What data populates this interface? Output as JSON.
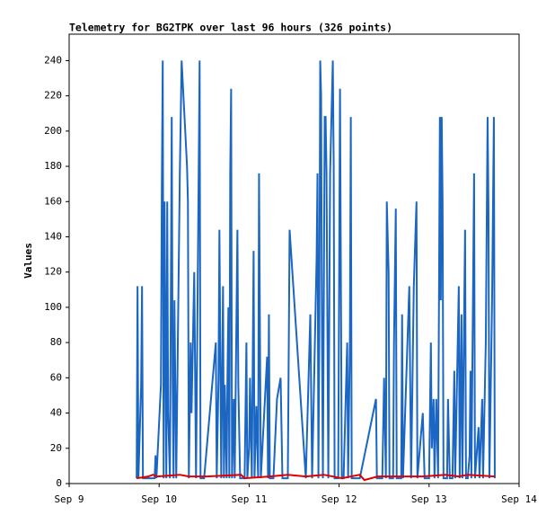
{
  "chart_data": {
    "type": "line",
    "title": "Telemetry for BG2TPK over last 96 hours (326 points)",
    "ylabel": "Values",
    "xlim": [
      9,
      14
    ],
    "xticks": [
      {
        "value": 9,
        "label": "Sep 9"
      },
      {
        "value": 10,
        "label": "Sep 10"
      },
      {
        "value": 11,
        "label": "Sep 11"
      },
      {
        "value": 12,
        "label": "Sep 12"
      },
      {
        "value": 13,
        "label": "Sep 13"
      },
      {
        "value": 14,
        "label": "Sep 14"
      }
    ],
    "ylim": [
      0,
      255
    ],
    "yticks": [
      0,
      20,
      40,
      60,
      80,
      100,
      120,
      140,
      160,
      180,
      200,
      220,
      240
    ],
    "series": [
      {
        "color": "#1a66c2",
        "x": [
          9.75,
          9.76,
          9.77,
          9.8,
          9.81,
          9.82,
          9.95,
          9.96,
          9.97,
          10.02,
          10.03,
          10.04,
          10.05,
          10.06,
          10.07,
          10.08,
          10.09,
          10.1,
          10.12,
          10.14,
          10.15,
          10.16,
          10.17,
          10.19,
          10.23,
          10.25,
          10.27,
          10.29,
          10.31,
          10.32,
          10.33,
          10.35,
          10.36,
          10.39,
          10.41,
          10.44,
          10.45,
          10.46,
          10.5,
          10.63,
          10.64,
          10.66,
          10.67,
          10.69,
          10.71,
          10.72,
          10.73,
          10.75,
          10.76,
          10.77,
          10.78,
          10.79,
          10.8,
          10.81,
          10.83,
          10.84,
          10.87,
          10.88,
          10.9,
          10.95,
          10.97,
          10.98,
          11.0,
          11.01,
          11.03,
          11.05,
          11.06,
          11.08,
          11.1,
          11.11,
          11.13,
          11.2,
          11.21,
          11.22,
          11.23,
          11.27,
          11.31,
          11.35,
          11.37,
          11.43,
          11.45,
          11.63,
          11.68,
          11.7,
          11.75,
          11.76,
          11.77,
          11.78,
          11.79,
          11.8,
          11.81,
          11.82,
          11.84,
          11.85,
          11.86,
          11.88,
          11.9,
          11.93,
          11.94,
          11.95,
          11.99,
          12.01,
          12.03,
          12.05,
          12.09,
          12.1,
          12.12,
          12.13,
          12.14,
          12.23,
          12.41,
          12.42,
          12.48,
          12.5,
          12.52,
          12.53,
          12.55,
          12.56,
          12.6,
          12.61,
          12.63,
          12.64,
          12.69,
          12.7,
          12.71,
          12.78,
          12.8,
          12.83,
          12.86,
          12.87,
          12.93,
          12.95,
          13.0,
          13.02,
          13.03,
          13.05,
          13.06,
          13.08,
          13.1,
          13.12,
          13.13,
          13.14,
          13.15,
          13.16,
          13.2,
          13.21,
          13.23,
          13.26,
          13.28,
          13.29,
          13.33,
          13.34,
          13.36,
          13.37,
          13.4,
          13.41,
          13.43,
          13.45,
          13.46,
          13.47,
          13.5,
          13.51,
          13.55,
          13.56,
          13.59,
          13.6,
          13.63,
          13.65,
          13.66,
          13.67,
          13.7,
          13.72,
          13.73
        ],
        "values": [
          3,
          112,
          3,
          56,
          112,
          3,
          3,
          16,
          3,
          56,
          168,
          240,
          3,
          160,
          80,
          3,
          160,
          40,
          3,
          208,
          60,
          3,
          104,
          3,
          176,
          240,
          220,
          200,
          180,
          160,
          3,
          80,
          40,
          120,
          3,
          180,
          240,
          3,
          3,
          80,
          3,
          60,
          144,
          3,
          112,
          3,
          56,
          3,
          64,
          100,
          3,
          176,
          224,
          3,
          48,
          3,
          144,
          56,
          3,
          3,
          80,
          3,
          20,
          60,
          3,
          132,
          3,
          44,
          3,
          176,
          3,
          72,
          3,
          96,
          3,
          3,
          48,
          60,
          3,
          3,
          144,
          3,
          96,
          3,
          128,
          176,
          3,
          88,
          240,
          220,
          80,
          3,
          208,
          208,
          176,
          3,
          176,
          240,
          180,
          3,
          3,
          224,
          3,
          3,
          80,
          3,
          80,
          208,
          3,
          3,
          48,
          3,
          3,
          60,
          3,
          160,
          120,
          3,
          3,
          80,
          156,
          3,
          3,
          96,
          3,
          112,
          3,
          112,
          160,
          3,
          40,
          3,
          3,
          80,
          20,
          48,
          3,
          48,
          3,
          208,
          104,
          208,
          160,
          3,
          3,
          48,
          3,
          3,
          64,
          3,
          112,
          3,
          96,
          3,
          144,
          3,
          3,
          16,
          64,
          3,
          176,
          3,
          32,
          3,
          48,
          3,
          80,
          208,
          156,
          3,
          104,
          208,
          3
        ]
      },
      {
        "color": "#e00000",
        "x": [
          9.75,
          9.88,
          9.93,
          9.98,
          10.23,
          10.33,
          10.53,
          10.91,
          10.95,
          11.23,
          11.43,
          11.63,
          11.83,
          12.03,
          12.23,
          12.28,
          12.43,
          12.93,
          13.18,
          13.33,
          13.43,
          13.73
        ],
        "values": [
          3,
          4,
          5,
          4,
          5,
          4,
          4,
          5,
          3,
          4,
          5,
          4,
          5,
          3,
          5,
          2,
          4,
          4,
          5,
          4,
          5,
          4
        ]
      }
    ]
  }
}
